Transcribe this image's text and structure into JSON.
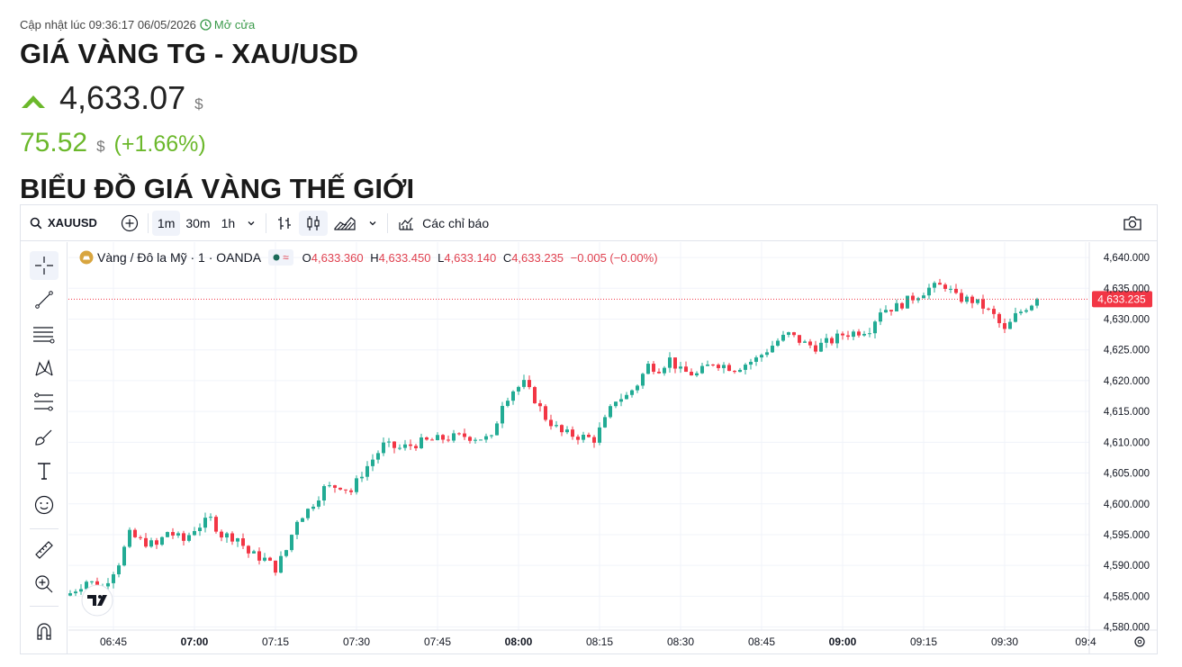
{
  "header": {
    "updated_label": "Cập nhật lúc 09:36:17 06/05/2026",
    "status": "Mở cửa",
    "title": "GIÁ VÀNG TG - XAU/USD",
    "price": "4,633.07",
    "currency": "$",
    "change": "75.52",
    "change_pct": "(+1.66%)",
    "chart_heading": "BIỂU ĐỒ GIÁ VÀNG THẾ GIỚI",
    "colors": {
      "up_arrow": "#6bb82b",
      "change_text": "#6bb82b"
    }
  },
  "toolbar": {
    "symbol": "XAUUSD",
    "intervals": [
      "1m",
      "30m",
      "1h"
    ],
    "active_interval": "1m",
    "indicators_label": "Các chỉ báo",
    "icons": [
      "search-icon",
      "add-compare-icon",
      "chevron-down-icon",
      "bar-style-icon",
      "candles-icon",
      "area-icon",
      "camera-icon"
    ]
  },
  "drawing_tools": [
    "crosshair-icon",
    "trendline-icon",
    "horizontal-lines-icon",
    "pattern-icon",
    "fib-icon",
    "brush-icon",
    "text-icon",
    "emoji-icon",
    "ruler-icon",
    "zoom-icon",
    "magnet-icon"
  ],
  "legend": {
    "name": "Vàng / Đô la Mỹ · 1 · OANDA",
    "o_label": "O",
    "o": "4,633.360",
    "h_label": "H",
    "h": "4,633.450",
    "l_label": "L",
    "l": "4,633.140",
    "c_label": "C",
    "c": "4,633.235",
    "chg": "−0.005 (−0.00%)"
  },
  "chart_data": {
    "type": "candlestick",
    "symbol": "XAUUSD",
    "interval": "1m",
    "x_ticks": [
      "06:45",
      "07:00",
      "07:15",
      "07:30",
      "07:45",
      "08:00",
      "08:15",
      "08:30",
      "08:45",
      "09:00",
      "09:15",
      "09:30",
      "09:4"
    ],
    "x_ticks_bold": [
      "07:00",
      "08:00",
      "09:00"
    ],
    "y_ticks": [
      "4,640.000",
      "4,635.000",
      "4,630.000",
      "4,625.000",
      "4,620.000",
      "4,615.000",
      "4,610.000",
      "4,605.000",
      "4,600.000",
      "4,595.000",
      "4,590.000",
      "4,585.000",
      "4,580.000"
    ],
    "ylim": [
      4579.5,
      4642.5
    ],
    "last_price_label": "4,633.235",
    "last_price": 4633.235,
    "colors": {
      "up": "#22ab94",
      "down": "#f23645",
      "price_line": "#f23645"
    },
    "close_path_by_time": [
      [
        "06:37",
        4585.5
      ],
      [
        "06:40",
        4587.5
      ],
      [
        "06:43",
        4586.5
      ],
      [
        "06:46",
        4590.5
      ],
      [
        "06:48",
        4595.0
      ],
      [
        "06:50",
        4594.0
      ],
      [
        "06:53",
        4593.2
      ],
      [
        "06:55",
        4595.5
      ],
      [
        "06:58",
        4594.0
      ],
      [
        "07:00",
        4596.0
      ],
      [
        "07:03",
        4597.5
      ],
      [
        "07:05",
        4595.0
      ],
      [
        "07:08",
        4594.5
      ],
      [
        "07:10",
        4592.0
      ],
      [
        "07:13",
        4591.0
      ],
      [
        "07:15",
        4589.5
      ],
      [
        "07:17",
        4592.5
      ],
      [
        "07:19",
        4597.5
      ],
      [
        "07:21",
        4599.0
      ],
      [
        "07:24",
        4602.5
      ],
      [
        "07:27",
        4603.0
      ],
      [
        "07:29",
        4602.0
      ],
      [
        "07:31",
        4605.0
      ],
      [
        "07:35",
        4609.5
      ],
      [
        "07:38",
        4609.0
      ],
      [
        "07:42",
        4610.0
      ],
      [
        "07:46",
        4610.6
      ],
      [
        "07:50",
        4611.0
      ],
      [
        "07:55",
        4610.5
      ],
      [
        "07:57",
        4616.5
      ],
      [
        "07:59",
        4618.5
      ],
      [
        "08:01",
        4619.5
      ],
      [
        "08:03",
        4617.0
      ],
      [
        "08:05",
        4614.0
      ],
      [
        "08:08",
        4611.5
      ],
      [
        "08:11",
        4611.0
      ],
      [
        "08:14",
        4610.5
      ],
      [
        "08:16",
        4613.5
      ],
      [
        "08:18",
        4617.0
      ],
      [
        "08:20",
        4617.5
      ],
      [
        "08:22",
        4619.5
      ],
      [
        "08:24",
        4622.5
      ],
      [
        "08:26",
        4622.0
      ],
      [
        "08:28",
        4623.5
      ],
      [
        "08:30",
        4621.5
      ],
      [
        "08:33",
        4621.0
      ],
      [
        "08:36",
        4623.0
      ],
      [
        "08:40",
        4622.0
      ],
      [
        "08:44",
        4623.5
      ],
      [
        "08:48",
        4626.5
      ],
      [
        "08:50",
        4627.5
      ],
      [
        "08:53",
        4626.0
      ],
      [
        "08:55",
        4625.5
      ],
      [
        "08:58",
        4626.5
      ],
      [
        "09:00",
        4627.5
      ],
      [
        "09:03",
        4628.0
      ],
      [
        "09:05",
        4628.5
      ],
      [
        "09:07",
        4631.5
      ],
      [
        "09:10",
        4632.0
      ],
      [
        "09:13",
        4633.5
      ],
      [
        "09:16",
        4635.0
      ],
      [
        "09:19",
        4635.5
      ],
      [
        "09:21",
        4633.5
      ],
      [
        "09:24",
        4633.0
      ],
      [
        "09:26",
        4632.0
      ],
      [
        "09:28",
        4630.5
      ],
      [
        "09:30",
        4628.0
      ],
      [
        "09:32",
        4630.5
      ],
      [
        "09:34",
        4632.0
      ],
      [
        "09:36",
        4633.2
      ]
    ]
  }
}
